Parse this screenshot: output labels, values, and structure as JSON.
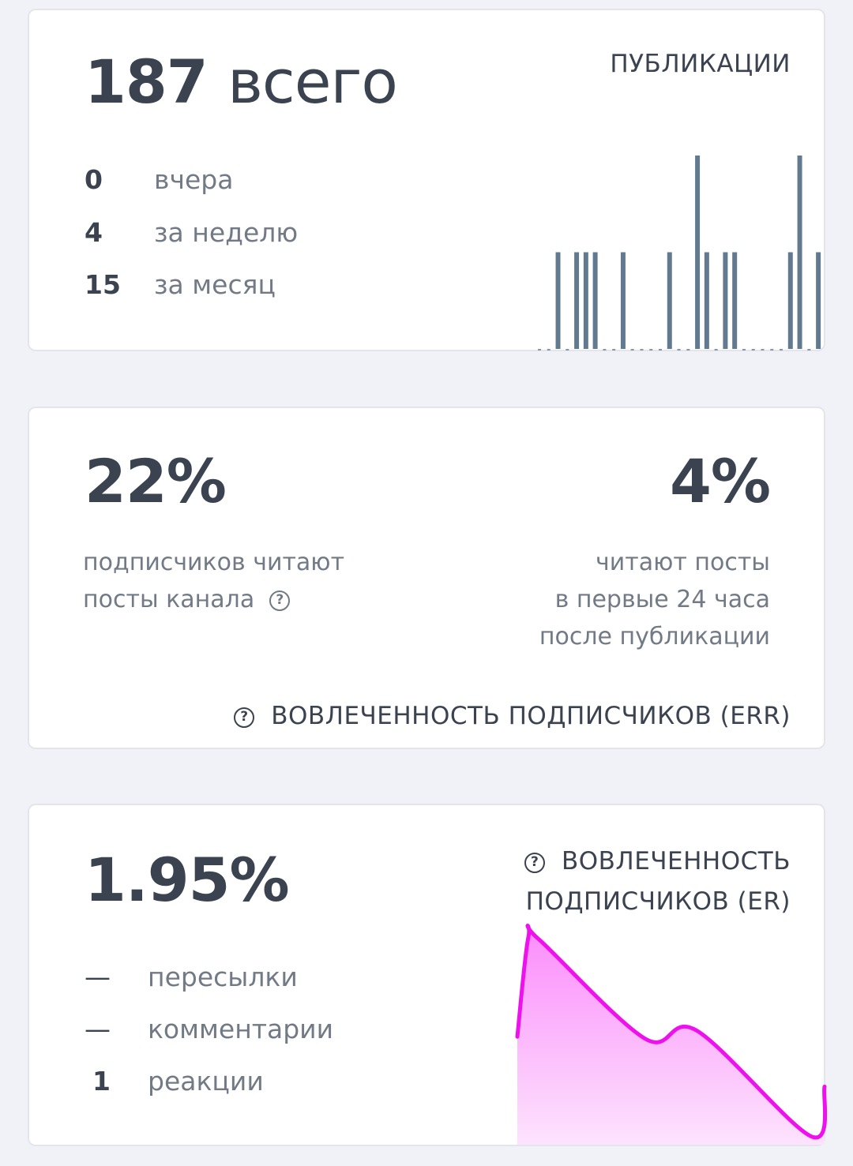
{
  "publications": {
    "total": "187",
    "total_suffix": "всего",
    "title": "ПУБЛИКАЦИИ",
    "rows": [
      {
        "value": "0",
        "label": "вчера"
      },
      {
        "value": "4",
        "label": "за неделю"
      },
      {
        "value": "15",
        "label": "за месяц"
      }
    ]
  },
  "err": {
    "left_value": "22%",
    "left_line1": "подписчиков читают",
    "left_line2": "посты канала",
    "right_value": "4%",
    "right_line1": "читают посты",
    "right_line2": "в первые 24 часа",
    "right_line3": "после публикации",
    "title": "ВОВЛЕЧЕННОСТЬ ПОДПИСЧИКОВ (ERR)",
    "help_icon": "?"
  },
  "er": {
    "value": "1.95%",
    "title_line1": "ВОВЛЕЧЕННОСТЬ",
    "title_line2": "ПОДПИСЧИКОВ (ER)",
    "help_icon": "?",
    "rows": [
      {
        "value": "—",
        "label": "пересылки"
      },
      {
        "value": "—",
        "label": "комментарии"
      },
      {
        "value": "1",
        "label": "реакции"
      }
    ]
  },
  "chart_data": [
    {
      "type": "bar",
      "title": "ПУБЛИКАЦИИ",
      "values": [
        0,
        0,
        1,
        0,
        1,
        1,
        1,
        0,
        0,
        1,
        0,
        0,
        0,
        0,
        1,
        0,
        0,
        2,
        1,
        0,
        1,
        1,
        0,
        0,
        0,
        0,
        0,
        1,
        2,
        0,
        1
      ],
      "ylim": [
        0,
        2
      ],
      "color": "#627a90"
    },
    {
      "type": "area",
      "title": "ВОВЛЕЧЕННОСТЬ ПОДПИСЧИКОВ (ER)",
      "values": [
        0.52,
        1.0,
        0.99,
        0.51,
        0.55,
        0.04,
        0.28
      ],
      "color": "#ee11ee"
    }
  ]
}
